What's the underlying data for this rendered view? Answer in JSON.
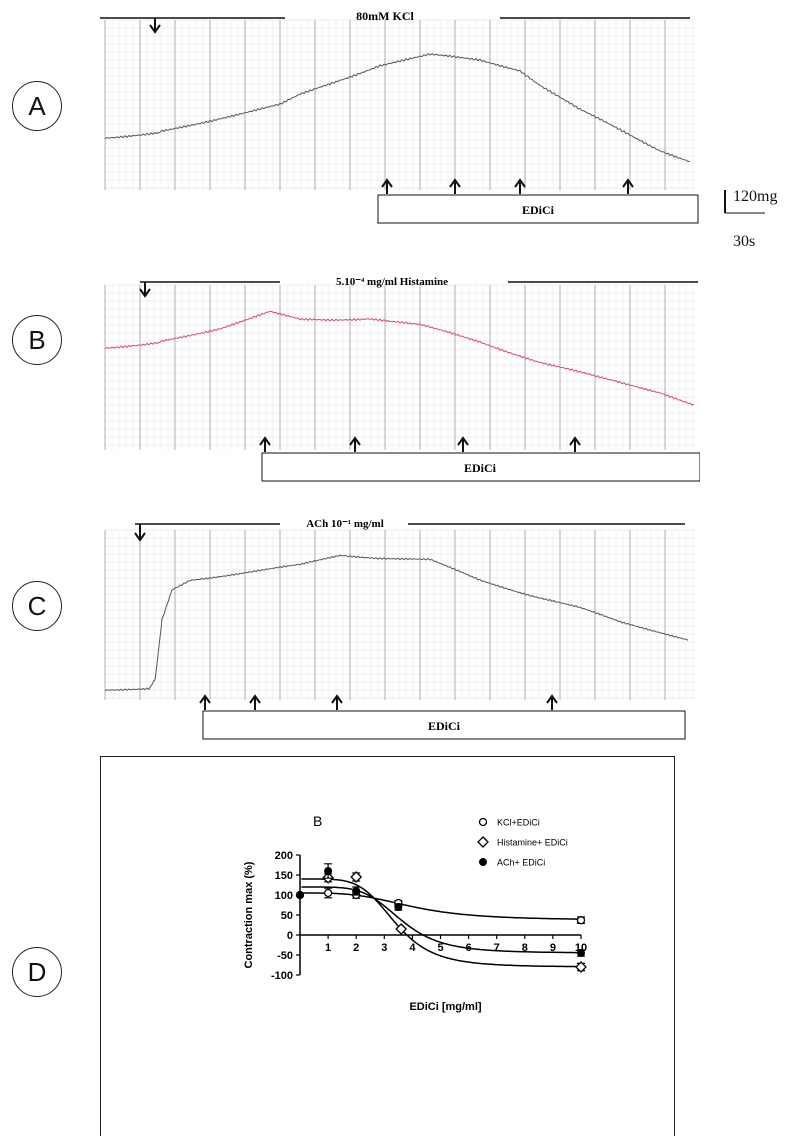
{
  "panels": {
    "A": {
      "letter": "A",
      "stimulus_label": "80mM KCl",
      "bar_label": "EDiCi"
    },
    "B": {
      "letter": "B",
      "stimulus_label": "5.10⁻⁴ mg/ml Histamine",
      "bar_label": "EDiCi"
    },
    "C": {
      "letter": "C",
      "stimulus_label": "ACh 10⁻¹ mg/ml",
      "bar_label": "EDiCi"
    },
    "D": {
      "letter": "D"
    }
  },
  "scale_bar": {
    "vertical": "120mg",
    "horizontal": "30s"
  },
  "colors": {
    "trace_a": "#555555",
    "trace_b": "#d4477a",
    "trace_c": "#555555",
    "grid": "#cccccc",
    "axis": "#000000"
  },
  "chart_data": {
    "type": "scatter",
    "panel_label": "B",
    "xlabel": "EDiCi [mg/ml]",
    "ylabel": "Contraction max (%)",
    "xlim": [
      0,
      10
    ],
    "ylim": [
      -100,
      200
    ],
    "x_ticks": [
      1,
      2,
      3,
      4,
      5,
      6,
      7,
      8,
      9,
      10
    ],
    "y_ticks": [
      -100,
      -50,
      0,
      50,
      100,
      150,
      200
    ],
    "legend_position": "top-right",
    "series": [
      {
        "name": "KCl+EDiCi",
        "marker": "circle-open",
        "points": [
          [
            0,
            100
          ],
          [
            1,
            105
          ],
          [
            2,
            100
          ],
          [
            3.5,
            80
          ],
          [
            10,
            37
          ]
        ],
        "errors": [
          0,
          12,
          8,
          6,
          8
        ],
        "fit": {
          "top": 105,
          "bottom": 37,
          "ec50": 4.0,
          "slope": 3.5
        }
      },
      {
        "name": "Histamine+ EDiCi",
        "marker": "diamond-open",
        "points": [
          [
            1,
            143
          ],
          [
            2,
            145
          ],
          [
            3.6,
            15
          ],
          [
            10,
            -80
          ]
        ],
        "errors": [
          10,
          10,
          0,
          9
        ],
        "fit": {
          "top": 140,
          "bottom": -80,
          "ec50": 3.4,
          "slope": 5
        }
      },
      {
        "name": "ACh+ EDiCi",
        "marker": "circle-filled",
        "points": [
          [
            0,
            100
          ],
          [
            1,
            160
          ],
          [
            2,
            110
          ],
          [
            3.5,
            70
          ],
          [
            10,
            -45
          ]
        ],
        "errors": [
          0,
          18,
          10,
          8,
          8
        ],
        "fit": {
          "top": 120,
          "bottom": -45,
          "ec50": 3.6,
          "slope": 5
        }
      }
    ]
  }
}
